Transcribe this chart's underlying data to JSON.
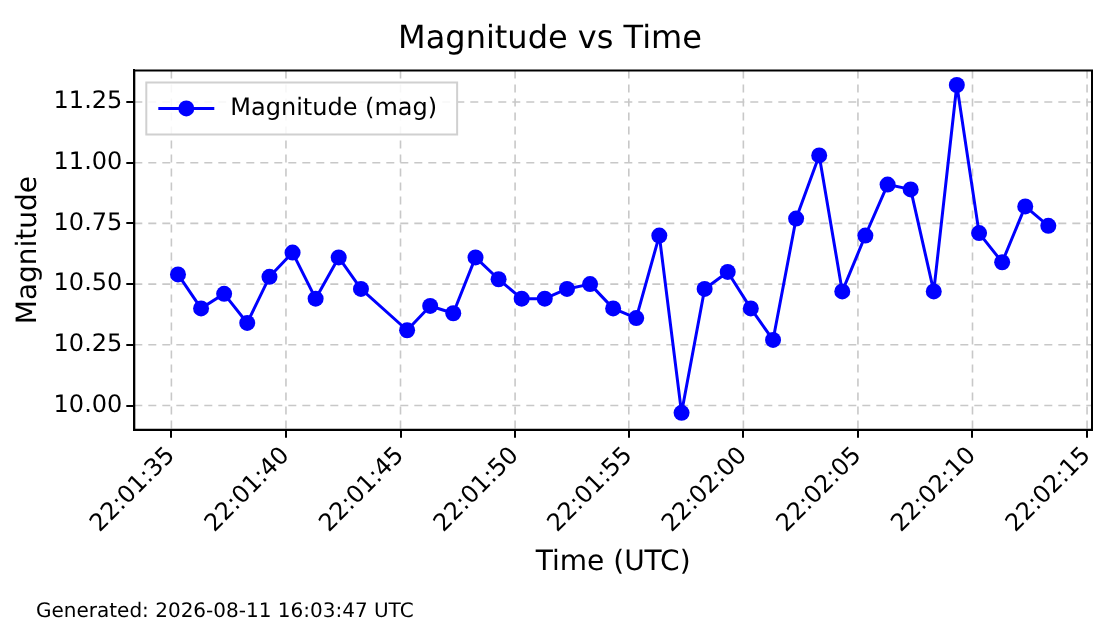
{
  "chart_data": {
    "type": "line",
    "title": "Magnitude vs Time",
    "xlabel": "Time (UTC)",
    "ylabel": "Magnitude",
    "annotations": [
      "Generated: 2026-08-11 16:03:47 UTC"
    ],
    "x": [
      22.02647,
      22.02675,
      22.02703,
      22.02731,
      22.02758,
      22.02786,
      22.02814,
      22.02842,
      22.02869,
      22.02925,
      22.02953,
      22.02981,
      22.03008,
      22.03036,
      22.03064,
      22.03092,
      22.03119,
      22.03147,
      22.03175,
      22.03203,
      22.03231,
      22.03258,
      22.03286,
      22.03314,
      22.03342,
      22.03369,
      22.03397,
      22.03425,
      22.03453,
      22.03481,
      22.03508,
      22.03536,
      22.03564,
      22.03592,
      22.03619,
      22.03647,
      22.03675,
      22.03703
    ],
    "series": [
      {
        "name": "Magnitude (mag)",
        "color": "#0000ff",
        "values": [
          10.54,
          10.4,
          10.46,
          10.34,
          10.53,
          10.63,
          10.44,
          10.61,
          10.48,
          10.31,
          10.41,
          10.38,
          10.61,
          10.52,
          10.44,
          10.44,
          10.48,
          10.5,
          10.4,
          10.36,
          10.7,
          9.97,
          10.48,
          10.55,
          10.4,
          10.27,
          10.77,
          11.03,
          10.47,
          10.7,
          10.91,
          10.89,
          10.47,
          11.32,
          10.71,
          10.59,
          10.82,
          10.74
        ]
      }
    ],
    "xlim": [
      22.02594,
      22.03756
    ],
    "xticks": [
      {
        "value": 22.02639,
        "label": "22:01:35"
      },
      {
        "value": 22.02778,
        "label": "22:01:40"
      },
      {
        "value": 22.02917,
        "label": "22:01:45"
      },
      {
        "value": 22.03056,
        "label": "22:01:50"
      },
      {
        "value": 22.03194,
        "label": "22:01:55"
      },
      {
        "value": 22.03333,
        "label": "22:02:00"
      },
      {
        "value": 22.03472,
        "label": "22:02:05"
      },
      {
        "value": 22.03611,
        "label": "22:02:10"
      },
      {
        "value": 22.0375,
        "label": "22:02:15"
      }
    ],
    "ylim": [
      9.9,
      11.38
    ],
    "yticks": [
      {
        "value": 10,
        "label": "10.00"
      },
      {
        "value": 10.25,
        "label": "10.25"
      },
      {
        "value": 10.5,
        "label": "10.50"
      },
      {
        "value": 10.75,
        "label": "10.75"
      },
      {
        "value": 11,
        "label": "11.00"
      },
      {
        "value": 11.25,
        "label": "11.25"
      }
    ],
    "grid": true,
    "legend": "top left",
    "marker": "circle",
    "line_style": "solid"
  }
}
